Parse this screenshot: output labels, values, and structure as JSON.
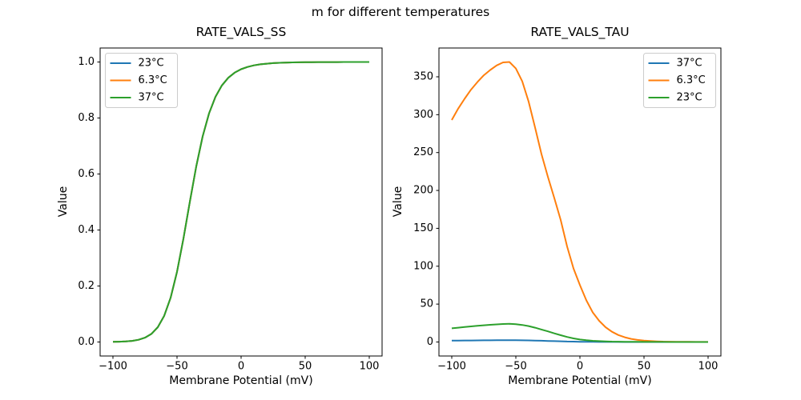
{
  "figure": {
    "suptitle": "m for different temperatures",
    "background": "#ffffff",
    "text_color": "#000000",
    "spine_color": "#000000",
    "legend_border_color": "#cccccc"
  },
  "chart_data": [
    {
      "type": "line",
      "title": "RATE_VALS_SS",
      "xlabel": "Membrane Potential (mV)",
      "ylabel": "Value",
      "xlim": [
        -110,
        110
      ],
      "ylim": [
        -0.05,
        1.05
      ],
      "xticks": [
        -100,
        -50,
        0,
        50,
        100
      ],
      "xtick_labels": [
        "−100",
        "−50",
        "0",
        "50",
        "100"
      ],
      "yticks": [
        0.0,
        0.2,
        0.4,
        0.6,
        0.8,
        1.0
      ],
      "ytick_labels": [
        "0.0",
        "0.2",
        "0.4",
        "0.6",
        "0.8",
        "1.0"
      ],
      "grid": false,
      "legend_loc": "upper-left",
      "x": [
        -100,
        -95,
        -90,
        -85,
        -80,
        -75,
        -70,
        -65,
        -60,
        -55,
        -50,
        -45,
        -40,
        -35,
        -30,
        -25,
        -20,
        -15,
        -10,
        -5,
        0,
        5,
        10,
        15,
        20,
        25,
        30,
        35,
        40,
        45,
        50,
        55,
        60,
        65,
        70,
        75,
        80,
        85,
        90,
        95,
        100
      ],
      "series": [
        {
          "name": "23°C",
          "color": "#1f77b4",
          "values": [
            0.0005,
            0.0011,
            0.0021,
            0.0041,
            0.008,
            0.0154,
            0.0289,
            0.0529,
            0.0937,
            0.158,
            0.2508,
            0.3692,
            0.5006,
            0.6271,
            0.7342,
            0.8166,
            0.8757,
            0.9163,
            0.9438,
            0.962,
            0.9742,
            0.9823,
            0.9879,
            0.9916,
            0.9941,
            0.9959,
            0.9971,
            0.998,
            0.9986,
            0.999,
            0.9993,
            0.9995,
            0.9996,
            0.9997,
            0.9998,
            0.9998,
            0.9999,
            0.9999,
            0.9999,
            1.0,
            1.0
          ]
        },
        {
          "name": "6.3°C",
          "color": "#ff7f0e",
          "values": [
            0.0005,
            0.0011,
            0.0021,
            0.0041,
            0.008,
            0.0154,
            0.0289,
            0.0529,
            0.0937,
            0.158,
            0.2508,
            0.3692,
            0.5006,
            0.6271,
            0.7342,
            0.8166,
            0.8757,
            0.9163,
            0.9438,
            0.962,
            0.9742,
            0.9823,
            0.9879,
            0.9916,
            0.9941,
            0.9959,
            0.9971,
            0.998,
            0.9986,
            0.999,
            0.9993,
            0.9995,
            0.9996,
            0.9997,
            0.9998,
            0.9998,
            0.9999,
            0.9999,
            0.9999,
            1.0,
            1.0
          ]
        },
        {
          "name": "37°C",
          "color": "#2ca02c",
          "values": [
            0.0005,
            0.0011,
            0.0021,
            0.0041,
            0.008,
            0.0154,
            0.0289,
            0.0529,
            0.0937,
            0.158,
            0.2508,
            0.3692,
            0.5006,
            0.6271,
            0.7342,
            0.8166,
            0.8757,
            0.9163,
            0.9438,
            0.962,
            0.9742,
            0.9823,
            0.9879,
            0.9916,
            0.9941,
            0.9959,
            0.9971,
            0.998,
            0.9986,
            0.999,
            0.9993,
            0.9995,
            0.9996,
            0.9997,
            0.9998,
            0.9998,
            0.9999,
            0.9999,
            0.9999,
            1.0,
            1.0
          ]
        }
      ]
    },
    {
      "type": "line",
      "title": "RATE_VALS_TAU",
      "xlabel": "Membrane Potential (mV)",
      "ylabel": "Value",
      "xlim": [
        -110,
        110
      ],
      "ylim": [
        -18.5,
        388
      ],
      "xticks": [
        -100,
        -50,
        0,
        50,
        100
      ],
      "xtick_labels": [
        "−100",
        "−50",
        "0",
        "50",
        "100"
      ],
      "yticks": [
        0,
        50,
        100,
        150,
        200,
        250,
        300,
        350
      ],
      "ytick_labels": [
        "0",
        "50",
        "100",
        "150",
        "200",
        "250",
        "300",
        "350"
      ],
      "grid": false,
      "legend_loc": "upper-right",
      "x": [
        -100,
        -95,
        -90,
        -85,
        -80,
        -75,
        -70,
        -65,
        -60,
        -55,
        -50,
        -45,
        -40,
        -35,
        -30,
        -25,
        -20,
        -15,
        -10,
        -5,
        0,
        5,
        10,
        15,
        20,
        25,
        30,
        35,
        40,
        45,
        50,
        55,
        60,
        65,
        70,
        75,
        80,
        85,
        90,
        95,
        100
      ],
      "series": [
        {
          "name": "37°C",
          "color": "#1f77b4",
          "values": [
            1.8,
            1.88,
            1.95,
            2.02,
            2.09,
            2.16,
            2.22,
            2.27,
            2.32,
            2.34,
            2.3,
            2.2,
            2.05,
            1.85,
            1.62,
            1.37,
            1.12,
            0.88,
            0.66,
            0.48,
            0.34,
            0.24,
            0.17,
            0.12,
            0.08,
            0.06,
            0.04,
            0.03,
            0.021,
            0.015,
            0.011,
            0.008,
            0.006,
            0.004,
            0.003,
            0.002,
            0.002,
            0.001,
            0.001,
            0.001,
            0.001
          ]
        },
        {
          "name": "6.3°C",
          "color": "#ff7f0e",
          "values": [
            293,
            308,
            321,
            333,
            343,
            352,
            359,
            365,
            369,
            369.5,
            361,
            344,
            317,
            283,
            248,
            218,
            190,
            161,
            126,
            97,
            75,
            55,
            39,
            28,
            19.5,
            13.5,
            9.2,
            6.2,
            4.1,
            2.7,
            1.8,
            1.2,
            0.8,
            0.55,
            0.4,
            0.3,
            0.22,
            0.16,
            0.12,
            0.09,
            0.07
          ]
        },
        {
          "name": "23°C",
          "color": "#2ca02c",
          "values": [
            18,
            18.9,
            19.8,
            20.6,
            21.3,
            22,
            22.7,
            23.2,
            23.7,
            23.9,
            23.5,
            22.5,
            21,
            18.9,
            16.5,
            14,
            11.4,
            8.9,
            6.6,
            4.7,
            3.3,
            2.3,
            1.6,
            1.1,
            0.78,
            0.54,
            0.38,
            0.27,
            0.19,
            0.14,
            0.1,
            0.07,
            0.05,
            0.04,
            0.03,
            0.02,
            0.017,
            0.013,
            0.01,
            0.008,
            0.006
          ]
        }
      ]
    }
  ]
}
